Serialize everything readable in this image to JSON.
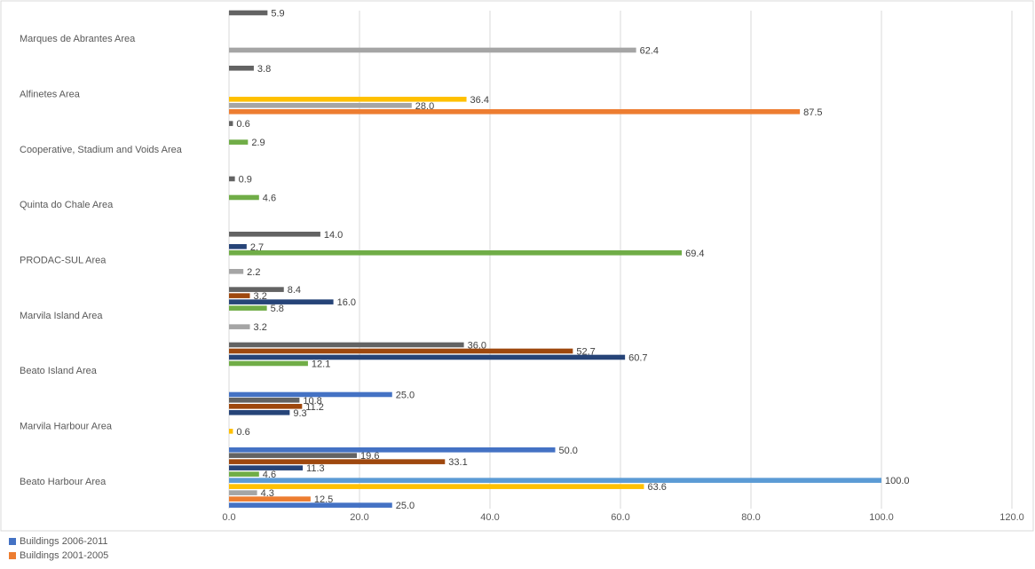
{
  "chart_data": {
    "type": "bar",
    "orientation": "horizontal",
    "xlim": [
      0,
      120
    ],
    "x_ticks": [
      "0.0",
      "20.0",
      "40.0",
      "60.0",
      "80.0",
      "100.0",
      "120.0"
    ],
    "grid": "vertical",
    "legend_position": "bottom-left",
    "categories": [
      "Marques de Abrantes Area",
      "Alfinetes Area",
      "Cooperative, Stadium and Voids Area",
      "Quinta do Chale Area",
      "PRODAC-SUL Area",
      "Marvila Island Area",
      "Beato Island Area",
      "Marvila Harbour Area",
      "Beato Harbour Area"
    ],
    "bar_colors": [
      "#4472C4",
      "#ED7D31",
      "#A5A5A5",
      "#FFC000",
      "#5B9BD5",
      "#70AD47",
      "#264478",
      "#9E480E",
      "#636363"
    ],
    "series_values": [
      [
        null,
        null,
        null,
        null,
        null,
        null,
        25.0,
        50.0,
        25.0
      ],
      [
        null,
        87.5,
        null,
        null,
        null,
        null,
        null,
        null,
        12.5
      ],
      [
        62.4,
        28.0,
        null,
        null,
        2.2,
        3.2,
        null,
        null,
        4.3
      ],
      [
        null,
        36.4,
        null,
        null,
        null,
        null,
        null,
        0.6,
        63.6
      ],
      [
        null,
        null,
        null,
        null,
        null,
        null,
        null,
        null,
        100.0
      ],
      [
        null,
        null,
        2.9,
        4.6,
        69.4,
        5.8,
        12.1,
        null,
        4.6
      ],
      [
        null,
        null,
        null,
        null,
        2.7,
        16.0,
        60.7,
        9.3,
        11.3
      ],
      [
        null,
        null,
        null,
        null,
        null,
        3.2,
        52.7,
        11.2,
        33.1
      ],
      [
        5.9,
        3.8,
        0.6,
        0.9,
        14.0,
        8.4,
        36.0,
        10.8,
        19.6
      ]
    ],
    "legend": [
      {
        "label": "Buildings 2006-2011",
        "color": "#4472C4"
      },
      {
        "label": "Buildings 2001-2005",
        "color": "#ED7D31"
      }
    ]
  }
}
